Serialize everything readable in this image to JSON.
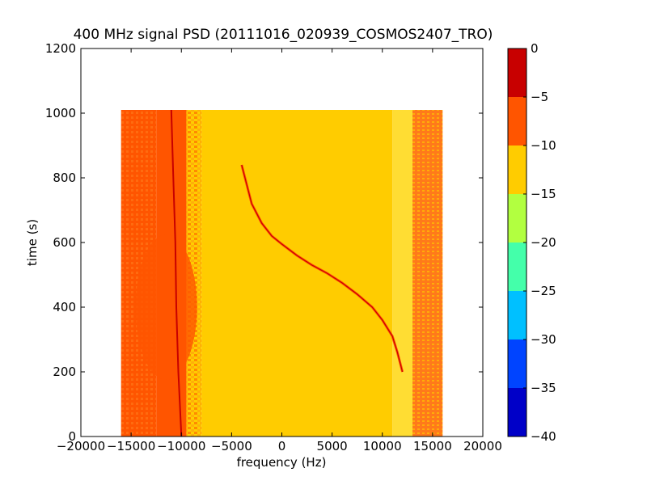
{
  "chart_data": {
    "type": "heatmap",
    "title": "400 MHz signal PSD (20111016_020939_COSMOS2407_TRO)",
    "xlabel": "frequency (Hz)",
    "ylabel": "time (s)",
    "xlim": [
      -20000,
      20000
    ],
    "ylim": [
      0,
      1200
    ],
    "x_ticks": [
      -20000,
      -15000,
      -10000,
      -5000,
      0,
      5000,
      10000,
      15000,
      20000
    ],
    "x_tick_labels": [
      "−20000",
      "−15000",
      "−10000",
      "−5000",
      "0",
      "5000",
      "10000",
      "15000",
      "20000"
    ],
    "y_ticks": [
      0,
      200,
      400,
      600,
      800,
      1000,
      1200
    ],
    "y_tick_labels": [
      "0",
      "200",
      "400",
      "600",
      "800",
      "1000",
      "1200"
    ],
    "data_extent": {
      "x": [
        -16000,
        16000
      ],
      "y": [
        0,
        1010
      ]
    },
    "colorbar": {
      "levels": [
        -40,
        -35,
        -30,
        -25,
        -20,
        -15,
        -10,
        -5,
        0
      ],
      "tick_labels": [
        "−40",
        "−35",
        "−30",
        "−25",
        "−20",
        "−15",
        "−10",
        "−5",
        "0"
      ],
      "colors": [
        "#0000c8",
        "#0044ff",
        "#00c0ff",
        "#44ffaa",
        "#b2ff40",
        "#ffcc00",
        "#ff5500",
        "#c80000"
      ]
    },
    "regions": [
      {
        "x": [
          -16000,
          -12500
        ],
        "y": [
          0,
          1010
        ],
        "level": "-10 to -5"
      },
      {
        "x": [
          -12500,
          -9500
        ],
        "y": [
          0,
          1010
        ],
        "level": "-10 to -5"
      },
      {
        "x": [
          -9500,
          -8000
        ],
        "y": [
          0,
          1010
        ],
        "level": "-10 to -5 / -15 to -10"
      },
      {
        "x": [
          -8000,
          11000
        ],
        "y": [
          0,
          1010
        ],
        "level": "-15 to -10"
      },
      {
        "x": [
          11000,
          13000
        ],
        "y": [
          0,
          1010
        ],
        "level": "-15 to -10"
      },
      {
        "x": [
          13000,
          16000
        ],
        "y": [
          0,
          1010
        ],
        "level": "-10 to -5"
      }
    ],
    "vertical_line": {
      "level": "-5 to 0",
      "points": [
        [
          -11000,
          1010
        ],
        [
          -10800,
          800
        ],
        [
          -10600,
          600
        ],
        [
          -10500,
          400
        ],
        [
          -10300,
          200
        ],
        [
          -10000,
          0
        ]
      ]
    },
    "signal_curve": {
      "level": "-5 to 0",
      "points": [
        [
          -4000,
          840
        ],
        [
          -3500,
          780
        ],
        [
          -3000,
          720
        ],
        [
          -2000,
          660
        ],
        [
          -1000,
          620
        ],
        [
          0,
          595
        ],
        [
          1500,
          560
        ],
        [
          3000,
          530
        ],
        [
          4500,
          505
        ],
        [
          6000,
          475
        ],
        [
          7500,
          440
        ],
        [
          9000,
          400
        ],
        [
          10000,
          360
        ],
        [
          11000,
          310
        ],
        [
          11500,
          260
        ],
        [
          12000,
          200
        ]
      ]
    }
  }
}
